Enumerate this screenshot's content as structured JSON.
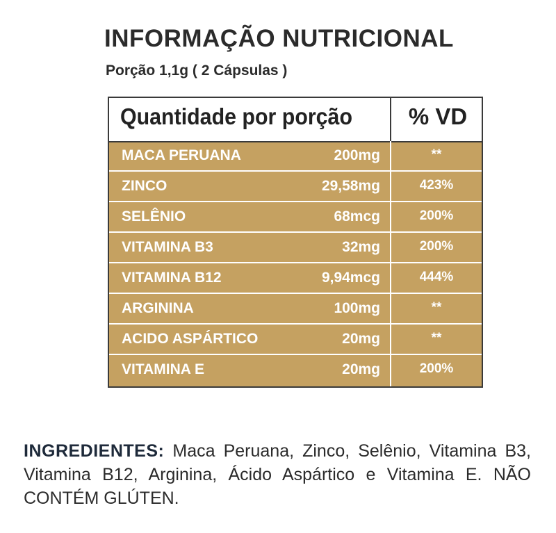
{
  "header": {
    "title": "INFORMAÇÃO NUTRICIONAL",
    "serving": "Porção 1,1g ( 2 Cápsulas )"
  },
  "table": {
    "col_quantity": "Quantidade por porção",
    "col_vd": "% VD",
    "rows": [
      {
        "name": "MACA PERUANA",
        "amount": "200mg",
        "vd": "**"
      },
      {
        "name": "ZINCO",
        "amount": "29,58mg",
        "vd": "423%"
      },
      {
        "name": "SELÊNIO",
        "amount": "68mcg",
        "vd": "200%"
      },
      {
        "name": "VITAMINA B3",
        "amount": "32mg",
        "vd": "200%"
      },
      {
        "name": "VITAMINA B12",
        "amount": "9,94mcg",
        "vd": "444%"
      },
      {
        "name": "ARGININA",
        "amount": "100mg",
        "vd": "**"
      },
      {
        "name": "ACIDO ASPÁRTICO",
        "amount": "20mg",
        "vd": "**"
      },
      {
        "name": "VITAMINA E",
        "amount": "20mg",
        "vd": "200%"
      }
    ],
    "colors": {
      "row_background": "#c5a161",
      "text": "#ffffff",
      "border": "#3a3a3a"
    }
  },
  "ingredients": {
    "label": "INGREDIENTES:",
    "text": " Maca Peruana, Zinco, Selênio, Vitamina B3, Vitamina B12, Arginina, Ácido Aspártico e Vitamina E. NÃO CONTÉM GLÚTEN."
  }
}
